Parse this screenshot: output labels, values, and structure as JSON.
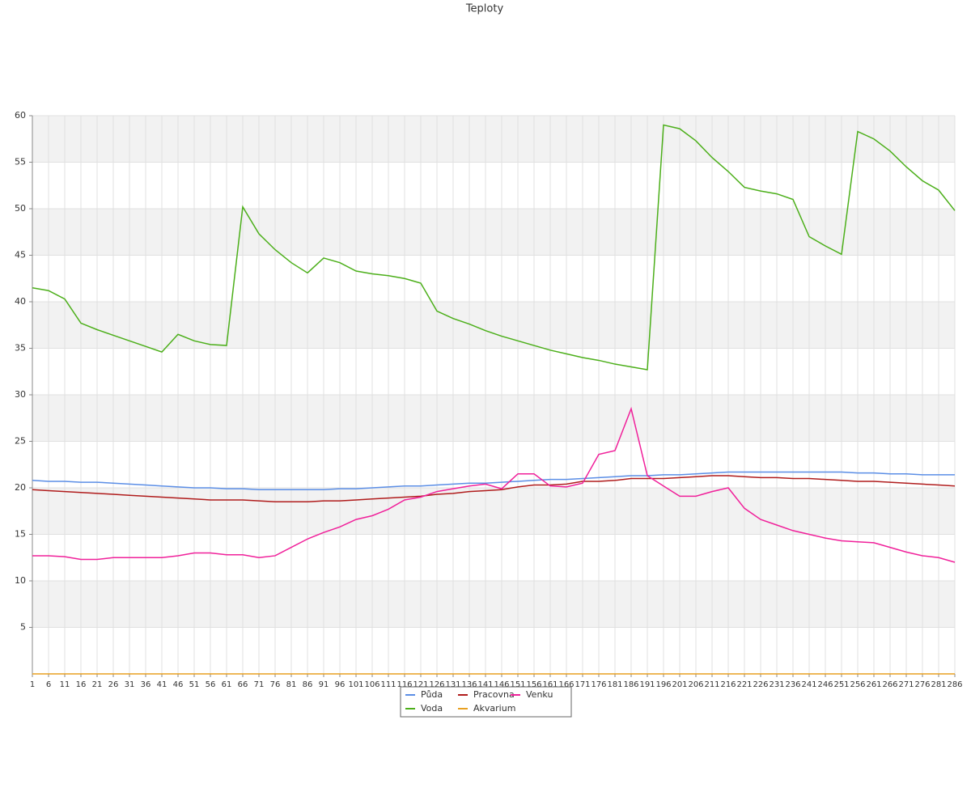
{
  "chart_data": {
    "type": "line",
    "title": "Teploty",
    "x": [
      1,
      6,
      11,
      16,
      21,
      26,
      31,
      36,
      41,
      46,
      51,
      56,
      61,
      66,
      71,
      76,
      81,
      86,
      91,
      96,
      101,
      106,
      111,
      116,
      121,
      126,
      131,
      136,
      141,
      146,
      151,
      156,
      161,
      166,
      171,
      176,
      181,
      186,
      191,
      196,
      201,
      206,
      211,
      216,
      221,
      226,
      231,
      236,
      241,
      246,
      251,
      256,
      261,
      266,
      271,
      276,
      281,
      286
    ],
    "xlim": [
      1,
      286
    ],
    "ylim": [
      0,
      60
    ],
    "yticks": [
      5,
      10,
      15,
      20,
      25,
      30,
      35,
      40,
      45,
      50,
      55,
      60
    ],
    "grid": true,
    "series": [
      {
        "name": "Půda",
        "color": "#5b8ee6",
        "values": [
          20.8,
          20.7,
          20.7,
          20.6,
          20.6,
          20.5,
          20.4,
          20.3,
          20.2,
          20.1,
          20.0,
          20.0,
          19.9,
          19.9,
          19.8,
          19.8,
          19.8,
          19.8,
          19.8,
          19.9,
          19.9,
          20.0,
          20.1,
          20.2,
          20.2,
          20.3,
          20.4,
          20.5,
          20.5,
          20.6,
          20.7,
          20.8,
          20.9,
          20.9,
          21.0,
          21.1,
          21.2,
          21.3,
          21.3,
          21.4,
          21.4,
          21.5,
          21.6,
          21.7,
          21.7,
          21.7,
          21.7,
          21.7,
          21.7,
          21.7,
          21.7,
          21.6,
          21.6,
          21.5,
          21.5,
          21.4,
          21.4,
          21.4
        ]
      },
      {
        "name": "Voda",
        "color": "#4caf1a",
        "values": [
          41.5,
          41.2,
          40.3,
          37.7,
          37.0,
          36.4,
          35.8,
          35.2,
          34.6,
          36.5,
          35.8,
          35.4,
          35.3,
          50.2,
          47.3,
          45.6,
          44.2,
          43.1,
          44.7,
          44.2,
          43.3,
          43.0,
          42.8,
          42.5,
          42.0,
          39.0,
          38.2,
          37.6,
          36.9,
          36.3,
          35.8,
          35.3,
          34.8,
          34.4,
          34.0,
          33.7,
          33.3,
          33.0,
          32.7,
          59.0,
          58.6,
          57.3,
          55.5,
          54.0,
          52.3,
          51.9,
          51.6,
          51.0,
          47.0,
          46.0,
          45.1,
          58.3,
          57.5,
          56.2,
          54.5,
          53.0,
          52.0,
          49.8
        ]
      },
      {
        "name": "Pracovna",
        "color": "#b01c1c",
        "values": [
          19.8,
          19.7,
          19.6,
          19.5,
          19.4,
          19.3,
          19.2,
          19.1,
          19.0,
          18.9,
          18.8,
          18.7,
          18.7,
          18.7,
          18.6,
          18.5,
          18.5,
          18.5,
          18.6,
          18.6,
          18.7,
          18.8,
          18.9,
          19.0,
          19.1,
          19.3,
          19.4,
          19.6,
          19.7,
          19.8,
          20.1,
          20.3,
          20.3,
          20.4,
          20.7,
          20.7,
          20.8,
          21.0,
          21.0,
          21.0,
          21.1,
          21.2,
          21.3,
          21.3,
          21.2,
          21.1,
          21.1,
          21.0,
          21.0,
          20.9,
          20.8,
          20.7,
          20.7,
          20.6,
          20.5,
          20.4,
          20.3,
          20.2
        ]
      },
      {
        "name": "Akvarium",
        "color": "#e8a020",
        "values": [
          0,
          0,
          0,
          0,
          0,
          0,
          0,
          0,
          0,
          0,
          0,
          0,
          0,
          0,
          0,
          0,
          0,
          0,
          0,
          0,
          0,
          0,
          0,
          0,
          0,
          0,
          0,
          0,
          0,
          0,
          0,
          0,
          0,
          0,
          0,
          0,
          0,
          0,
          0,
          0,
          0,
          0,
          0,
          0,
          0,
          0,
          0,
          0,
          0,
          0,
          0,
          0,
          0,
          0,
          0,
          0,
          0,
          0
        ]
      },
      {
        "name": "Venku",
        "color": "#f0209a",
        "values": [
          12.7,
          12.7,
          12.6,
          12.3,
          12.3,
          12.5,
          12.5,
          12.5,
          12.5,
          12.7,
          13.0,
          13.0,
          12.8,
          12.8,
          12.5,
          12.7,
          13.6,
          14.5,
          15.2,
          15.8,
          16.6,
          17.0,
          17.7,
          18.7,
          19.0,
          19.6,
          19.9,
          20.2,
          20.4,
          19.9,
          21.5,
          21.5,
          20.2,
          20.1,
          20.5,
          23.6,
          24.0,
          28.5,
          21.3,
          20.2,
          19.1,
          19.1,
          19.6,
          20.0,
          17.8,
          16.6,
          16.0,
          15.4,
          15.0,
          14.6,
          14.3,
          14.2,
          14.1,
          13.6,
          13.1,
          12.7,
          12.5,
          12.0
        ]
      }
    ]
  }
}
